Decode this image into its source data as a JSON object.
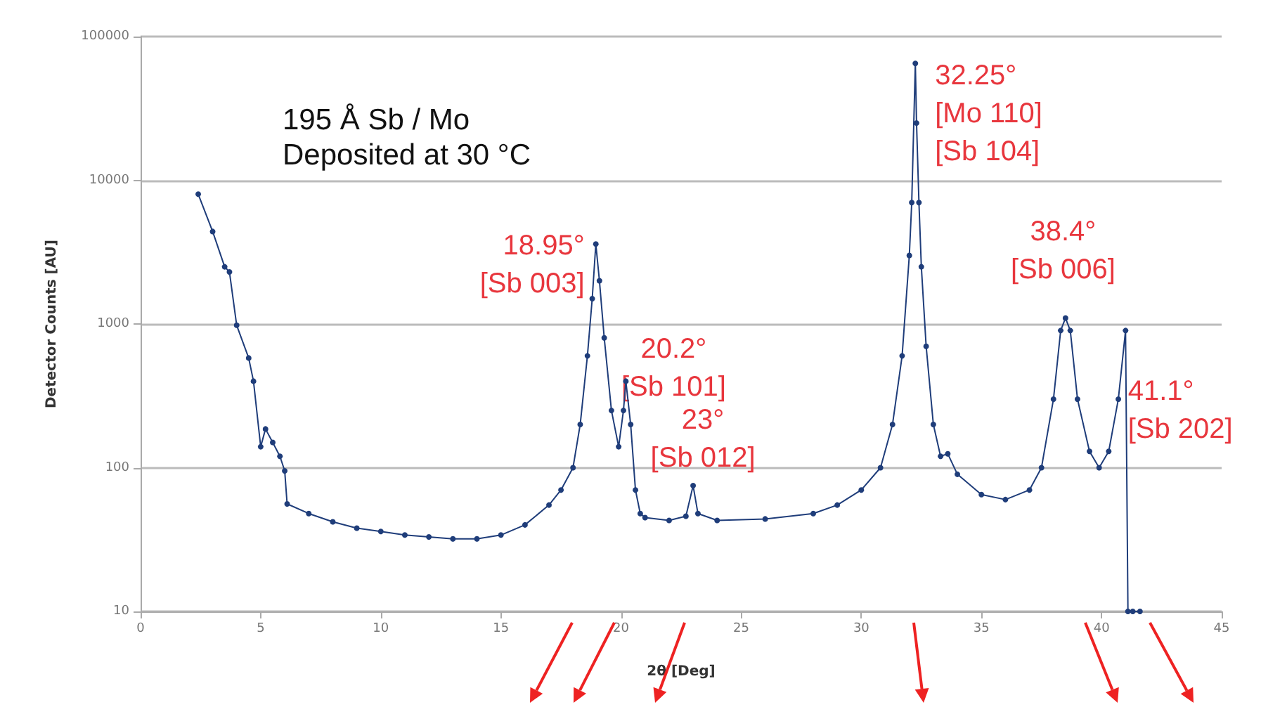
{
  "chart_data": {
    "type": "line",
    "title": "195 Å Sb / Mo",
    "subtitle": "Deposited at 30 °C",
    "xlabel": "2θ [Deg]",
    "ylabel": "Detector Counts [AU]",
    "x": [
      2.4,
      3.0,
      3.5,
      3.7,
      4.0,
      4.5,
      4.7,
      5.0,
      5.2,
      5.5,
      5.8,
      6.0,
      6.1,
      7,
      8,
      9,
      10,
      11,
      12,
      13,
      14,
      15,
      16,
      17,
      17.5,
      18,
      18.3,
      18.6,
      18.8,
      18.95,
      19.1,
      19.3,
      19.6,
      19.9,
      20.1,
      20.2,
      20.4,
      20.6,
      20.8,
      21,
      22,
      22.7,
      23.0,
      23.2,
      24,
      26,
      28,
      29,
      30,
      30.8,
      31.3,
      31.7,
      32.0,
      32.1,
      32.25,
      32.3,
      32.4,
      32.5,
      32.7,
      33.0,
      33.3,
      33.6,
      34,
      35,
      36,
      37,
      37.5,
      38.0,
      38.3,
      38.5,
      38.7,
      39.0,
      39.5,
      39.9,
      40.3,
      40.7,
      41.0,
      41.1,
      41.3,
      41.6
    ],
    "series": [
      {
        "color": "#1f3d7a",
        "values": [
          8000,
          4400,
          2500,
          2300,
          980,
          580,
          400,
          140,
          186,
          150,
          120,
          95,
          56,
          48,
          42,
          38,
          36,
          34,
          33,
          32,
          32,
          34,
          40,
          55,
          70,
          100,
          200,
          600,
          1500,
          3600,
          2000,
          800,
          250,
          140,
          250,
          400,
          200,
          70,
          48,
          45,
          43,
          46,
          75,
          48,
          43,
          44,
          48,
          55,
          70,
          100,
          200,
          600,
          3000,
          7000,
          65000,
          25000,
          7000,
          2500,
          700,
          200,
          120,
          125,
          90,
          65,
          60,
          70,
          100,
          300,
          900,
          1100,
          900,
          300,
          130,
          100,
          130,
          300,
          900,
          10,
          10,
          10
        ]
      }
    ],
    "xlim": [
      0,
      45
    ],
    "xticks": [
      0,
      5,
      10,
      15,
      20,
      25,
      30,
      35,
      40,
      45
    ],
    "ylim": [
      10,
      100000
    ],
    "yticks": [
      10,
      100,
      1000,
      10000,
      100000
    ],
    "log": "y",
    "grid": "y",
    "marker": "circle",
    "line_style": "solid",
    "annotations": [
      {
        "text": "18.95°\n[Sb 003]",
        "x": 18.95,
        "y": 3600
      },
      {
        "text": "20.2°\n[Sb 101]",
        "x": 20.2,
        "y": 400
      },
      {
        "text": "23°\n[Sb 012]",
        "x": 23.0,
        "y": 75
      },
      {
        "text": "32.25°\n[Mo 110]\n[Sb 104]",
        "x": 32.25,
        "y": 65000
      },
      {
        "text": "38.4°\n[Sb 006]",
        "x": 38.4,
        "y": 1100
      },
      {
        "text": "41.1°\n[Sb 202]",
        "x": 41.1,
        "y": 900
      }
    ]
  }
}
